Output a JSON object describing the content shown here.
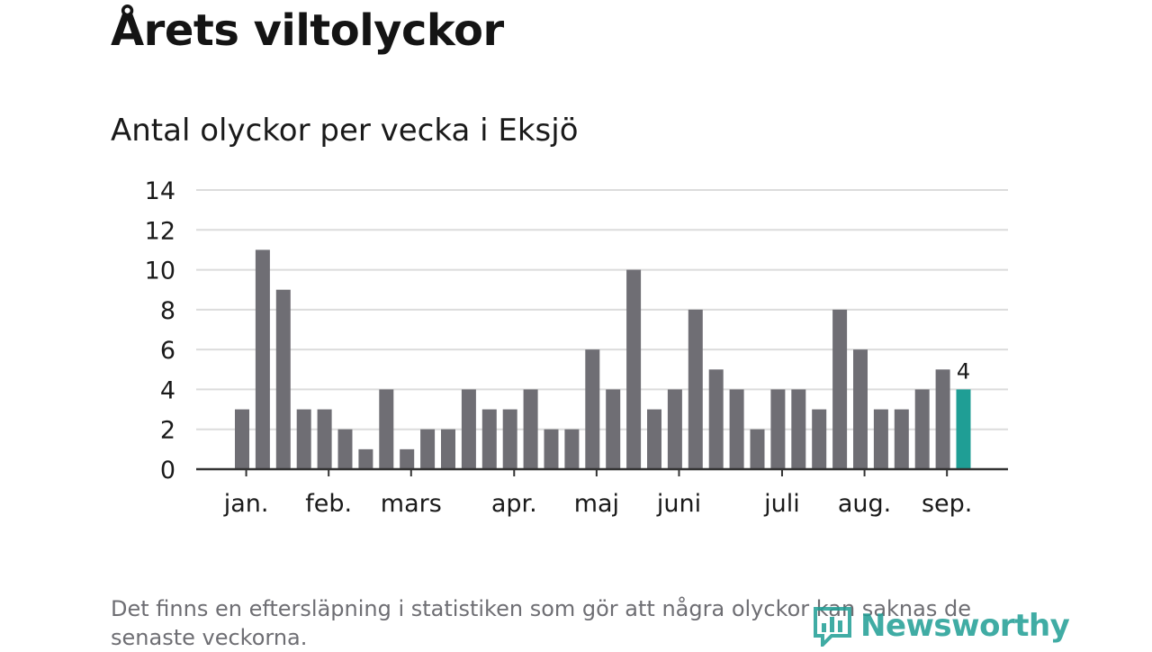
{
  "header": {
    "title": "Årets viltolyckor",
    "subtitle": "Antal olyckor per vecka i Eksjö"
  },
  "footer": {
    "note": "Det finns en eftersläpning i statistiken som gör att några olyckor kan saknas de senaste veckorna.",
    "brand": "Newsworthy",
    "brand_icon": "newsworthy-logo-icon"
  },
  "colors": {
    "bar": "#6f6e74",
    "highlight": "#1f9e95",
    "grid": "#dcdcdc",
    "axis": "#333333",
    "text": "#1a1a1a"
  },
  "chart_data": {
    "type": "bar",
    "title": "Årets viltolyckor",
    "subtitle": "Antal olyckor per vecka i Eksjö",
    "xlabel": "",
    "ylabel": "",
    "ylim": [
      0,
      14
    ],
    "yticks": [
      0,
      2,
      4,
      6,
      8,
      10,
      12,
      14
    ],
    "grid": true,
    "values": [
      3,
      11,
      9,
      3,
      3,
      2,
      1,
      4,
      1,
      2,
      2,
      4,
      3,
      3,
      4,
      2,
      2,
      6,
      4,
      10,
      3,
      4,
      8,
      5,
      4,
      2,
      4,
      4,
      3,
      8,
      6,
      3,
      3,
      4,
      5,
      4
    ],
    "month_ticks": [
      {
        "label": "jan.",
        "bar": 0.2
      },
      {
        "label": "feb.",
        "bar": 4.2
      },
      {
        "label": "mars",
        "bar": 8.2
      },
      {
        "label": "apr.",
        "bar": 13.2
      },
      {
        "label": "maj",
        "bar": 17.2
      },
      {
        "label": "juni",
        "bar": 21.2
      },
      {
        "label": "juli",
        "bar": 26.2
      },
      {
        "label": "aug.",
        "bar": 30.2
      },
      {
        "label": "sep.",
        "bar": 34.2
      }
    ],
    "highlight_index": 35,
    "highlight_label": "4"
  }
}
